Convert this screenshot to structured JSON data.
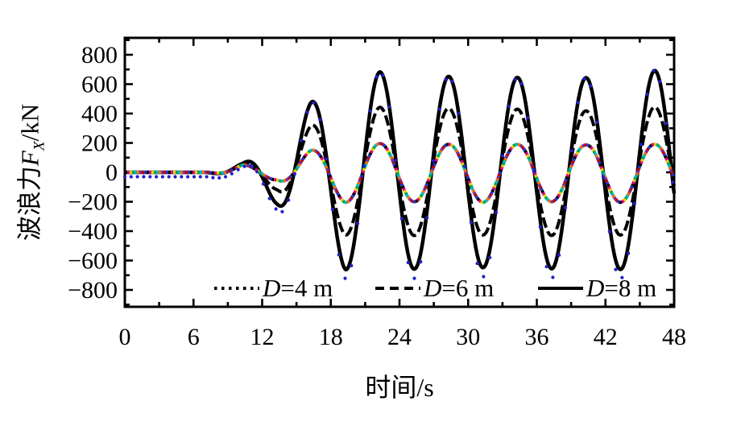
{
  "figure": {
    "background": "#ffffff",
    "frame_color": "#000000"
  },
  "axes": {
    "x": {
      "title": "时间/s",
      "tick_labels": [
        "0",
        "6",
        "12",
        "18",
        "24",
        "30",
        "36",
        "42",
        "48"
      ],
      "tick_values": [
        0,
        6,
        12,
        18,
        24,
        30,
        36,
        42,
        48
      ],
      "minor_tick_values": [
        3,
        9,
        15,
        21,
        27,
        33,
        39,
        45
      ],
      "range": [
        0,
        48
      ]
    },
    "y": {
      "title_parts": {
        "prefix": "波浪力",
        "var": "F",
        "sub": "X",
        "suffix": "/kN"
      },
      "tick_labels": [
        "800",
        "600",
        "400",
        "200",
        "0",
        "−200",
        "−400",
        "−600",
        "−800"
      ],
      "tick_values": [
        800,
        600,
        400,
        200,
        0,
        -200,
        -400,
        -600,
        -800
      ],
      "minor_tick_values": [
        900,
        700,
        500,
        300,
        100,
        -100,
        -300,
        -500,
        -700,
        -900
      ],
      "range": [
        -915,
        915
      ]
    }
  },
  "legend": {
    "items": [
      {
        "var": "D",
        "rest": "=4 m",
        "style": "dotted"
      },
      {
        "var": "D",
        "rest": "=6 m",
        "style": "dashed"
      },
      {
        "var": "D",
        "rest": "=8 m",
        "style": "solid"
      }
    ]
  },
  "chart_data": {
    "type": "line",
    "title": "",
    "xlabel": "时间/s",
    "ylabel": "波浪力FX/kN",
    "xlim": [
      0,
      48
    ],
    "ylim": [
      -915,
      915
    ],
    "grid": false,
    "legend_position": "inside-bottom",
    "carrier": {
      "period_s": 6,
      "peak_time_s": 22.3,
      "note": "F(t)=A(t)*cos(2*pi*(t-peak_time)/period); A(t) linear between envelope points, 0 before first point"
    },
    "series": [
      {
        "name": "D=4 m",
        "line": "dotted-multicolor",
        "width": 4,
        "envelope": [
          [
            7.2,
            0
          ],
          [
            8.6,
            12
          ],
          [
            10.3,
            50
          ],
          [
            13.3,
            52
          ],
          [
            16.3,
            150
          ],
          [
            19.3,
            205
          ],
          [
            22.3,
            196
          ],
          [
            25.3,
            200
          ],
          [
            28.3,
            190
          ],
          [
            31.3,
            204
          ],
          [
            34.3,
            190
          ],
          [
            37.3,
            200
          ],
          [
            40.3,
            186
          ],
          [
            43.3,
            204
          ],
          [
            46.3,
            191
          ],
          [
            48,
            195
          ]
        ]
      },
      {
        "name": "D=6 m",
        "line": "dashed",
        "color": "#000000",
        "width": 4,
        "envelope": [
          [
            7.2,
            0
          ],
          [
            8.6,
            15
          ],
          [
            10.3,
            56
          ],
          [
            13.3,
            118
          ],
          [
            16.3,
            320
          ],
          [
            19.3,
            426
          ],
          [
            22.3,
            443
          ],
          [
            25.3,
            430
          ],
          [
            28.3,
            436
          ],
          [
            31.3,
            426
          ],
          [
            34.3,
            430
          ],
          [
            37.3,
            430
          ],
          [
            40.3,
            418
          ],
          [
            43.3,
            427
          ],
          [
            46.3,
            445
          ],
          [
            48,
            443
          ]
        ]
      },
      {
        "name": "D=8 m",
        "line": "solid",
        "color": "#000000",
        "width": 4.5,
        "envelope": [
          [
            7.2,
            0
          ],
          [
            8.6,
            18
          ],
          [
            10.3,
            60
          ],
          [
            13.3,
            215
          ],
          [
            16.3,
            478
          ],
          [
            19.3,
            662
          ],
          [
            22.3,
            683
          ],
          [
            25.3,
            658
          ],
          [
            28.3,
            652
          ],
          [
            31.3,
            648
          ],
          [
            34.3,
            645
          ],
          [
            37.3,
            656
          ],
          [
            40.3,
            643
          ],
          [
            43.3,
            660
          ],
          [
            46.3,
            692
          ],
          [
            48,
            692
          ]
        ]
      },
      {
        "name": "D=8 m markers",
        "line": "markers",
        "color": "#2020cc",
        "marker_interval_s": 0.55,
        "marker_radius": 2.1,
        "amplitude_scale": 1.05,
        "offset_kN": -30
      }
    ],
    "d4_colors": [
      "#000000",
      "#e6007e",
      "#e8d000",
      "#00a651",
      "#00b7c3",
      "#ff6a00",
      "#7030a0",
      "#c00000",
      "#2233cc"
    ]
  }
}
